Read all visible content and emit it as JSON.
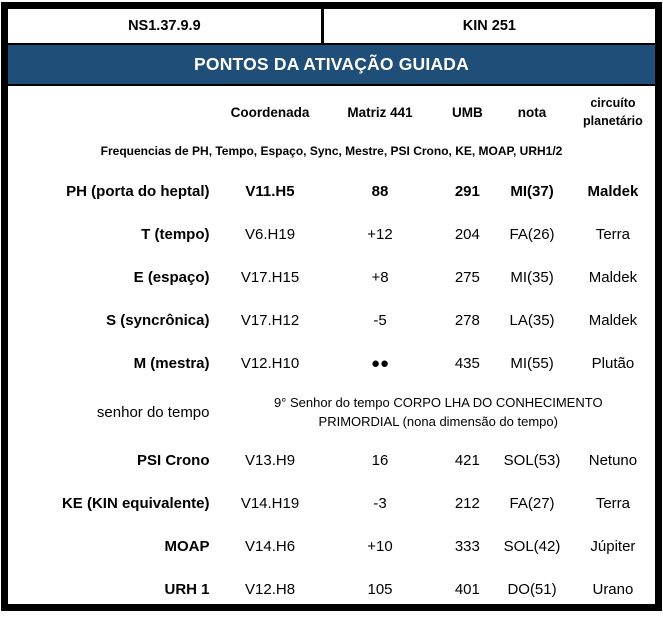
{
  "colors": {
    "title_bar_bg": "#1F4E79",
    "title_bar_text": "#FFFFFF",
    "border": "#000000"
  },
  "top": {
    "left_cell": "NS1.37.9.9",
    "right_cell": "KIN 251"
  },
  "title": "PONTOS DA ATIVAÇÃO GUIADA",
  "table": {
    "columns": {
      "coordenada": "Coordenada",
      "matriz": "Matriz 441",
      "umb": "UMB",
      "nota": "nota",
      "circuito_line1": "circuíto",
      "circuito_line2": "planetário"
    },
    "subtitle": "Frequencias de PH, Tempo, Espaço, Sync, Mestre, PSI Crono, KE, MOAP, URH1/2",
    "rows": [
      {
        "label": "PH (porta do heptal)",
        "coordenada": "V11.H5",
        "matriz": "88",
        "umb": "291",
        "nota": "MI(37)",
        "circuito": "Maldek",
        "bold": true
      },
      {
        "label": "T (tempo)",
        "coordenada": "V6.H19",
        "matriz": "+12",
        "umb": "204",
        "nota": "FA(26)",
        "circuito": "Terra"
      },
      {
        "label": "E (espaço)",
        "coordenada": "V17.H15",
        "matriz": "+8",
        "umb": "275",
        "nota": "MI(35)",
        "circuito": "Maldek"
      },
      {
        "label": "S (syncrônica)",
        "coordenada": "V17.H12",
        "matriz": "-5",
        "umb": "278",
        "nota": "LA(35)",
        "circuito": "Maldek"
      },
      {
        "label": "M (mestra)",
        "coordenada": "V12.H10",
        "matriz": "●●",
        "umb": "435",
        "nota": "MI(55)",
        "circuito": "Plutão"
      },
      {
        "label": "senhor do tempo",
        "span_text": "9° Senhor do tempo CORPO LHA DO CONHECIMENTO PRIMORDIAL (nona dimensão do tempo)"
      },
      {
        "label": "PSI Crono",
        "coordenada": "V13.H9",
        "matriz": "16",
        "umb": "421",
        "nota": "SOL(53)",
        "circuito": "Netuno"
      },
      {
        "label": "KE (KIN equivalente)",
        "coordenada": "V14.H19",
        "matriz": "-3",
        "umb": "212",
        "nota": "FA(27)",
        "circuito": "Terra"
      },
      {
        "label": "MOAP",
        "coordenada": "V14.H6",
        "matriz": "+10",
        "umb": "333",
        "nota": "SOL(42)",
        "circuito": "Júpiter"
      },
      {
        "label": "URH 1",
        "coordenada": "V12.H8",
        "matriz": "105",
        "umb": "401",
        "nota": "DO(51)",
        "circuito": "Urano"
      }
    ]
  }
}
